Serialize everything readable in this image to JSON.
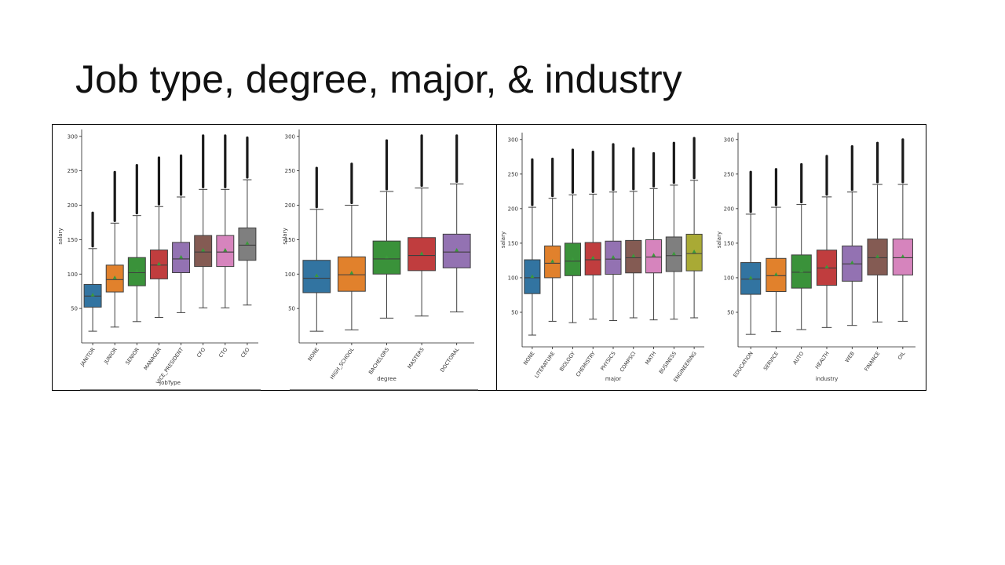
{
  "slide": {
    "title": "Job type, degree, major, & industry"
  },
  "chart_data": [
    {
      "type": "box",
      "xlabel": "jobType",
      "ylabel": "salary",
      "ylim": [
        0,
        310
      ],
      "yticks": [
        50,
        100,
        150,
        200,
        250,
        300
      ],
      "categories": [
        "JANITOR",
        "JUNIOR",
        "SENIOR",
        "MANAGER",
        "VICE_PRESIDENT",
        "CFO",
        "CTO",
        "CEO"
      ],
      "colors": [
        "#3274a1",
        "#e1812c",
        "#3a923a",
        "#c03d3e",
        "#9372b2",
        "#845b53",
        "#d684bd",
        "#7f7f7f"
      ],
      "boxes": [
        {
          "whisker_low": 17,
          "q1": 52,
          "median": 68,
          "mean": 70,
          "q3": 85,
          "whisker_high": 137,
          "outlier_max": 189
        },
        {
          "whisker_low": 23,
          "q1": 74,
          "median": 92,
          "mean": 95,
          "q3": 113,
          "whisker_high": 174,
          "outlier_max": 248
        },
        {
          "whisker_low": 31,
          "q1": 83,
          "median": 102,
          "mean": 105,
          "q3": 124,
          "whisker_high": 185,
          "outlier_max": 258
        },
        {
          "whisker_low": 37,
          "q1": 93,
          "median": 113,
          "mean": 115,
          "q3": 135,
          "whisker_high": 198,
          "outlier_max": 269
        },
        {
          "whisker_low": 44,
          "q1": 102,
          "median": 122,
          "mean": 125,
          "q3": 146,
          "whisker_high": 212,
          "outlier_max": 272
        },
        {
          "whisker_low": 51,
          "q1": 111,
          "median": 132,
          "mean": 135,
          "q3": 156,
          "whisker_high": 223,
          "outlier_max": 301
        },
        {
          "whisker_low": 51,
          "q1": 111,
          "median": 132,
          "mean": 135,
          "q3": 156,
          "whisker_high": 223,
          "outlier_max": 301
        },
        {
          "whisker_low": 55,
          "q1": 120,
          "median": 142,
          "mean": 145,
          "q3": 167,
          "whisker_high": 237,
          "outlier_max": 298
        }
      ]
    },
    {
      "type": "box",
      "xlabel": "degree",
      "ylabel": "salary",
      "ylim": [
        0,
        310
      ],
      "yticks": [
        50,
        100,
        150,
        200,
        250,
        300
      ],
      "categories": [
        "NONE",
        "HIGH_SCHOOL",
        "BACHELORS",
        "MASTERS",
        "DOCTORAL"
      ],
      "colors": [
        "#3274a1",
        "#e1812c",
        "#3a923a",
        "#c03d3e",
        "#9372b2"
      ],
      "boxes": [
        {
          "whisker_low": 17,
          "q1": 73,
          "median": 94,
          "mean": 98,
          "q3": 120,
          "whisker_high": 194,
          "outlier_max": 254
        },
        {
          "whisker_low": 19,
          "q1": 75,
          "median": 99,
          "mean": 102,
          "q3": 125,
          "whisker_high": 200,
          "outlier_max": 260
        },
        {
          "whisker_low": 36,
          "q1": 100,
          "median": 122,
          "mean": 125,
          "q3": 148,
          "whisker_high": 220,
          "outlier_max": 294
        },
        {
          "whisker_low": 39,
          "q1": 105,
          "median": 127,
          "mean": 130,
          "q3": 153,
          "whisker_high": 225,
          "outlier_max": 301
        },
        {
          "whisker_low": 45,
          "q1": 109,
          "median": 132,
          "mean": 135,
          "q3": 158,
          "whisker_high": 231,
          "outlier_max": 301
        }
      ]
    },
    {
      "type": "box",
      "xlabel": "major",
      "ylabel": "salary",
      "ylim": [
        0,
        310
      ],
      "yticks": [
        50,
        100,
        150,
        200,
        250,
        300
      ],
      "categories": [
        "NONE",
        "LITERATURE",
        "BIOLOGY",
        "CHEMISTRY",
        "PHYSICS",
        "COMPSCI",
        "MATH",
        "BUSINESS",
        "ENGINEERING"
      ],
      "colors": [
        "#3274a1",
        "#e1812c",
        "#3a923a",
        "#c03d3e",
        "#9372b2",
        "#845b53",
        "#d684bd",
        "#7f7f7f",
        "#a9aa35"
      ],
      "boxes": [
        {
          "whisker_low": 17,
          "q1": 77,
          "median": 100,
          "mean": 102,
          "q3": 126,
          "whisker_high": 202,
          "outlier_max": 271
        },
        {
          "whisker_low": 37,
          "q1": 100,
          "median": 121,
          "mean": 124,
          "q3": 146,
          "whisker_high": 215,
          "outlier_max": 272
        },
        {
          "whisker_low": 35,
          "q1": 103,
          "median": 124,
          "mean": 127,
          "q3": 150,
          "whisker_high": 220,
          "outlier_max": 285
        },
        {
          "whisker_low": 40,
          "q1": 104,
          "median": 126,
          "mean": 129,
          "q3": 151,
          "whisker_high": 221,
          "outlier_max": 282
        },
        {
          "whisker_low": 38,
          "q1": 105,
          "median": 127,
          "mean": 130,
          "q3": 153,
          "whisker_high": 224,
          "outlier_max": 293
        },
        {
          "whisker_low": 42,
          "q1": 107,
          "median": 129,
          "mean": 132,
          "q3": 154,
          "whisker_high": 225,
          "outlier_max": 287
        },
        {
          "whisker_low": 39,
          "q1": 107,
          "median": 130,
          "mean": 133,
          "q3": 155,
          "whisker_high": 229,
          "outlier_max": 280
        },
        {
          "whisker_low": 40,
          "q1": 109,
          "median": 132,
          "mean": 135,
          "q3": 159,
          "whisker_high": 234,
          "outlier_max": 295
        },
        {
          "whisker_low": 42,
          "q1": 110,
          "median": 135,
          "mean": 138,
          "q3": 163,
          "whisker_high": 241,
          "outlier_max": 302
        }
      ]
    },
    {
      "type": "box",
      "xlabel": "industry",
      "ylabel": "salary",
      "ylim": [
        0,
        310
      ],
      "yticks": [
        50,
        100,
        150,
        200,
        250,
        300
      ],
      "categories": [
        "EDUCATION",
        "SERVICE",
        "AUTO",
        "HEALTH",
        "WEB",
        "FINANCE",
        "OIL"
      ],
      "colors": [
        "#3274a1",
        "#e1812c",
        "#3a923a",
        "#c03d3e",
        "#9372b2",
        "#845b53",
        "#d684bd"
      ],
      "boxes": [
        {
          "whisker_low": 18,
          "q1": 76,
          "median": 98,
          "mean": 100,
          "q3": 122,
          "whisker_high": 192,
          "outlier_max": 253
        },
        {
          "whisker_low": 22,
          "q1": 80,
          "median": 103,
          "mean": 105,
          "q3": 128,
          "whisker_high": 202,
          "outlier_max": 257
        },
        {
          "whisker_low": 25,
          "q1": 85,
          "median": 108,
          "mean": 110,
          "q3": 133,
          "whisker_high": 206,
          "outlier_max": 264
        },
        {
          "whisker_low": 28,
          "q1": 89,
          "median": 114,
          "mean": 116,
          "q3": 140,
          "whisker_high": 217,
          "outlier_max": 276
        },
        {
          "whisker_low": 31,
          "q1": 95,
          "median": 120,
          "mean": 122,
          "q3": 146,
          "whisker_high": 224,
          "outlier_max": 290
        },
        {
          "whisker_low": 36,
          "q1": 104,
          "median": 129,
          "mean": 131,
          "q3": 156,
          "whisker_high": 235,
          "outlier_max": 295
        },
        {
          "whisker_low": 37,
          "q1": 104,
          "median": 129,
          "mean": 131,
          "q3": 156,
          "whisker_high": 235,
          "outlier_max": 300
        }
      ]
    }
  ]
}
